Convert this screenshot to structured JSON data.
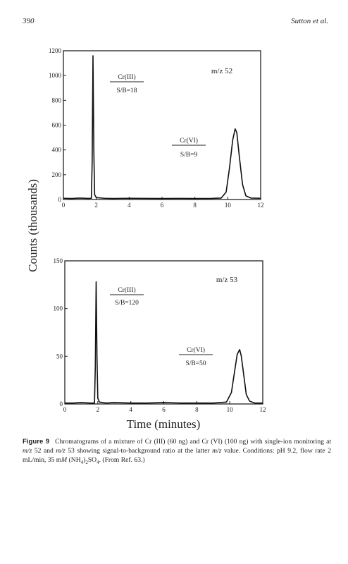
{
  "header": {
    "page_number": "390",
    "running_head": "Sutton et al."
  },
  "chart_data": [
    {
      "type": "line",
      "annotations": [
        "m/z 52",
        "Cr(III)",
        "S/B=18",
        "Cr(VI)",
        "S/B=9"
      ],
      "xlim": [
        0,
        12
      ],
      "ylim": [
        0,
        1200
      ],
      "xticks": [
        0,
        2,
        4,
        6,
        8,
        10,
        12
      ],
      "yticks": [
        0,
        200,
        400,
        600,
        800,
        1000,
        1200
      ],
      "series": [
        {
          "color": "#111111",
          "x": [
            0,
            0.5,
            1,
            1.5,
            1.7,
            1.75,
            1.8,
            1.85,
            1.9,
            2.0,
            2.5,
            3,
            4,
            5,
            6,
            7,
            8,
            9,
            9.6,
            9.9,
            10.1,
            10.3,
            10.45,
            10.55,
            10.7,
            10.9,
            11.1,
            11.4,
            12
          ],
          "values": [
            10,
            8,
            12,
            9,
            10,
            300,
            1160,
            400,
            40,
            15,
            10,
            8,
            10,
            9,
            8,
            9,
            8,
            9,
            12,
            60,
            250,
            480,
            570,
            540,
            350,
            120,
            30,
            12,
            10
          ]
        }
      ]
    },
    {
      "type": "line",
      "annotations": [
        "m/z 53",
        "Cr(III)",
        "S/B=120",
        "Cr(VI)",
        "S/B=50"
      ],
      "xlim": [
        0,
        12
      ],
      "ylim": [
        0,
        150
      ],
      "xticks": [
        0,
        2,
        4,
        6,
        8,
        10,
        12
      ],
      "yticks": [
        0,
        50,
        100,
        150
      ],
      "series": [
        {
          "color": "#111111",
          "x": [
            0,
            0.5,
            1,
            1.5,
            1.8,
            1.85,
            1.9,
            1.95,
            2.0,
            2.1,
            2.5,
            3,
            4,
            5,
            6,
            7,
            8,
            9,
            9.8,
            10.1,
            10.3,
            10.45,
            10.6,
            10.7,
            10.85,
            11.0,
            11.2,
            11.5,
            12
          ],
          "values": [
            1,
            1,
            1.5,
            1,
            1,
            40,
            128,
            50,
            6,
            2,
            1,
            1.5,
            1,
            1,
            1.5,
            1,
            1,
            1,
            2,
            12,
            35,
            52,
            57,
            50,
            30,
            10,
            3,
            1,
            1
          ]
        }
      ]
    }
  ],
  "ylabel": "Counts (thousands)",
  "xlabel": "Time (minutes)",
  "caption": {
    "label": "Figure 9",
    "parts": [
      "Chromatograms of a mixture of Cr (III) (60 ng) and Cr (VI) (100 ng) with single-ion monitoring at ",
      "m/z",
      " 52 and ",
      "m/z",
      " 53 showing signal-to-background ratio at the latter ",
      "m/z",
      " value. Conditions: pH 9.2, flow rate 2 mL/min, 35 m",
      "M",
      " (NH",
      "4",
      ")",
      "2",
      "SO",
      "4",
      ". (From Ref. 63.)"
    ]
  }
}
